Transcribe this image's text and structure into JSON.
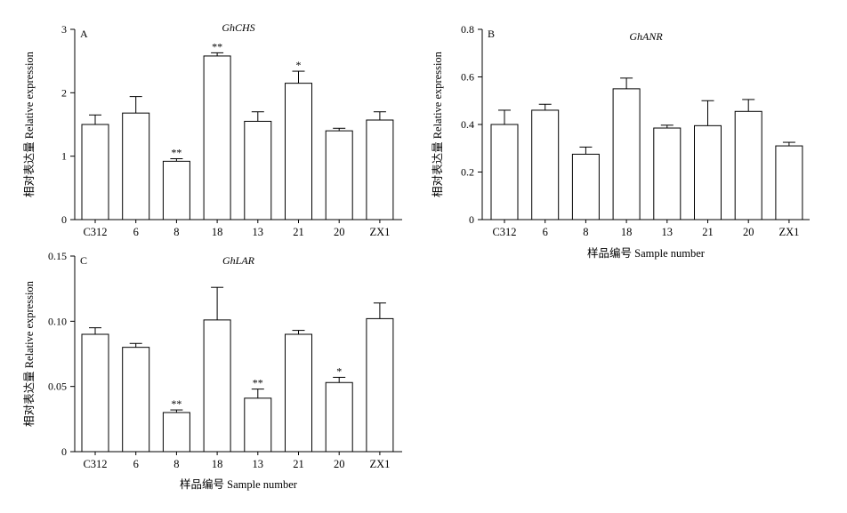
{
  "chart_data": [
    {
      "type": "bar",
      "panel_label": "A",
      "title": "GhCHS",
      "ylabel": "相对表达量 Relative expression",
      "xlabel": "",
      "ylim": [
        0,
        3
      ],
      "yticks": [
        "0",
        "1",
        "2",
        "3"
      ],
      "categories": [
        "C312",
        "6",
        "8",
        "18",
        "13",
        "21",
        "20",
        "ZX1"
      ],
      "values": [
        1.5,
        1.68,
        0.92,
        2.58,
        1.55,
        2.15,
        1.4,
        1.57
      ],
      "errors": [
        0.15,
        0.26,
        0.04,
        0.05,
        0.15,
        0.19,
        0.04,
        0.13
      ],
      "significance": [
        "",
        "",
        "**",
        "**",
        "",
        "*",
        "",
        ""
      ]
    },
    {
      "type": "bar",
      "panel_label": "B",
      "title": "GhANR",
      "ylabel": "相对表达量 Relative expression",
      "xlabel": "样品编号 Sample number",
      "ylim": [
        0,
        0.8
      ],
      "yticks": [
        "0",
        "0.2",
        "0.4",
        "0.6",
        "0.8"
      ],
      "categories": [
        "C312",
        "6",
        "8",
        "18",
        "13",
        "21",
        "20",
        "ZX1"
      ],
      "values": [
        0.4,
        0.46,
        0.275,
        0.55,
        0.385,
        0.395,
        0.455,
        0.31
      ],
      "errors": [
        0.06,
        0.025,
        0.03,
        0.045,
        0.012,
        0.105,
        0.05,
        0.015
      ],
      "significance": [
        "",
        "",
        "",
        "",
        "",
        "",
        "",
        ""
      ]
    },
    {
      "type": "bar",
      "panel_label": "C",
      "title": "GhLAR",
      "ylabel": "相对表达量 Relative expression",
      "xlabel": "样品编号 Sample number",
      "ylim": [
        0,
        0.15
      ],
      "yticks": [
        "0",
        "0.05",
        "0.10",
        "0.15"
      ],
      "categories": [
        "C312",
        "6",
        "8",
        "18",
        "13",
        "21",
        "20",
        "ZX1"
      ],
      "values": [
        0.09,
        0.08,
        0.03,
        0.101,
        0.041,
        0.09,
        0.053,
        0.102
      ],
      "errors": [
        0.005,
        0.003,
        0.002,
        0.025,
        0.007,
        0.003,
        0.004,
        0.012
      ],
      "significance": [
        "",
        "",
        "**",
        "",
        "**",
        "",
        "*",
        ""
      ]
    }
  ]
}
